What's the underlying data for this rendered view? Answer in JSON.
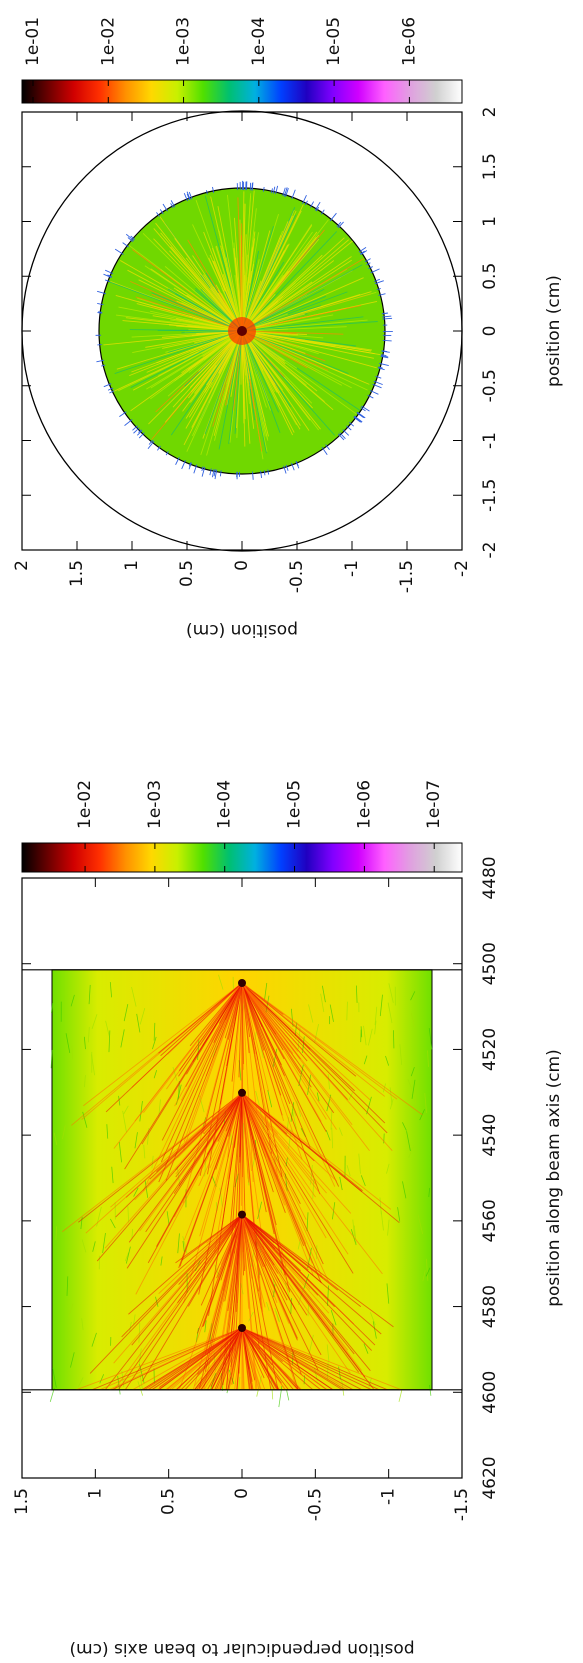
{
  "chart_data": [
    {
      "type": "heatmap",
      "x_label": "position along beam axis (cm)",
      "y_label": "position perpendicular to bean axis (cm)",
      "xlim": [
        4620,
        4480
      ],
      "xticks": [
        4620,
        4600,
        4580,
        4560,
        4540,
        4520,
        4500,
        4480
      ],
      "ylim": [
        -1.5,
        1.5
      ],
      "yticks": [
        1.5,
        1,
        0.5,
        0,
        -0.5,
        -1,
        -1.5
      ],
      "colorbar": {
        "log": true,
        "clim": [
          4e-08,
          0.08
        ],
        "ticks": [
          {
            "value": 0.01,
            "label": "1e-02"
          },
          {
            "value": 0.001,
            "label": "1e-03"
          },
          {
            "value": 0.0001,
            "label": "1e-04"
          },
          {
            "value": 1e-05,
            "label": "1e-05"
          },
          {
            "value": 1e-06,
            "label": "1e-06"
          },
          {
            "value": 1e-07,
            "label": "1e-07"
          }
        ],
        "colormap": [
          "#000000",
          "#6a0000",
          "#d00000",
          "#ff3000",
          "#ff9000",
          "#ffd800",
          "#c8f000",
          "#50e000",
          "#00c070",
          "#00b0e0",
          "#0040ff",
          "#2000c0",
          "#8000ff",
          "#d000ff",
          "#ff60ff",
          "#e0a0e0",
          "#d0d0d0",
          "#ffffff"
        ]
      }
    },
    {
      "type": "heatmap",
      "x_label": "position (cm)",
      "y_label": "position (cm)",
      "xlim": [
        -2,
        2
      ],
      "xticks": [
        -2,
        -1.5,
        -1,
        -0.5,
        0,
        0.5,
        1,
        1.5,
        2
      ],
      "ylim": [
        -2,
        2
      ],
      "yticks": [
        2,
        1.5,
        1,
        0.5,
        0,
        -0.5,
        -1,
        -1.5,
        -2
      ],
      "colorbar": {
        "log": true,
        "clim": [
          2e-07,
          0.14
        ],
        "ticks": [
          {
            "value": 0.1,
            "label": "1e-01"
          },
          {
            "value": 0.01,
            "label": "1e-02"
          },
          {
            "value": 0.001,
            "label": "1e-03"
          },
          {
            "value": 0.0001,
            "label": "1e-04"
          },
          {
            "value": 1e-05,
            "label": "1e-05"
          },
          {
            "value": 1e-06,
            "label": "1e-06"
          }
        ],
        "colormap": [
          "#000000",
          "#6a0000",
          "#d00000",
          "#ff3000",
          "#ff9000",
          "#ffd800",
          "#c8f000",
          "#50e000",
          "#00c070",
          "#00b0e0",
          "#0040ff",
          "#2000c0",
          "#8000ff",
          "#d000ff",
          "#ff60ff",
          "#e0a0e0",
          "#d0d0d0",
          "#ffffff"
        ]
      }
    }
  ]
}
